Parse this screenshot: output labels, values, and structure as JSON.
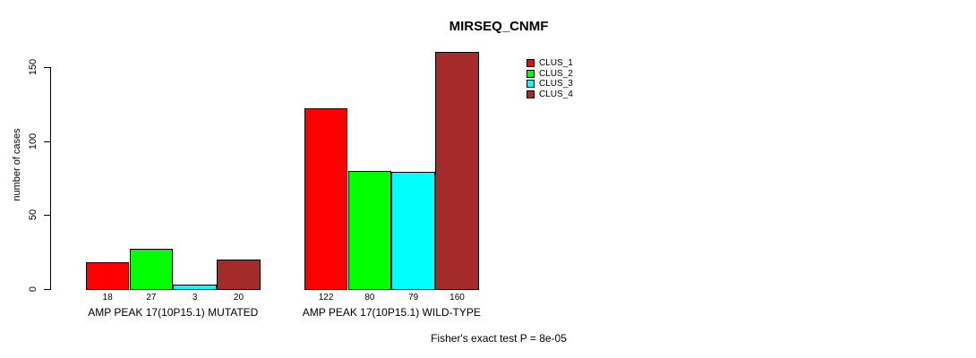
{
  "chart_data": {
    "type": "bar",
    "title": "MIRSEQ_CNMF",
    "ylabel": "number of cases",
    "xlabel": "",
    "yticks": [
      0,
      50,
      100,
      150
    ],
    "ylim": [
      0,
      150
    ],
    "grid": false,
    "legend_position": "upper-right-inside",
    "categories": [
      "AMP PEAK 17(10P15.1) MUTATED",
      "AMP PEAK 17(10P15.1) WILD-TYPE"
    ],
    "series": [
      {
        "name": "CLUS_1",
        "color": "#FF0000",
        "values": [
          18,
          122
        ]
      },
      {
        "name": "CLUS_2",
        "color": "#00FF00",
        "values": [
          27,
          80
        ]
      },
      {
        "name": "CLUS_3",
        "color": "#00FFFF",
        "values": [
          3,
          79
        ]
      },
      {
        "name": "CLUS_4",
        "color": "#A52A2A",
        "values": [
          20,
          160
        ]
      }
    ],
    "bar_value_labels": [
      [
        "18",
        "27",
        "3",
        "20"
      ],
      [
        "122",
        "80",
        "79",
        "160"
      ]
    ],
    "footnote": "Fisher's exact test P = 8e-05"
  }
}
